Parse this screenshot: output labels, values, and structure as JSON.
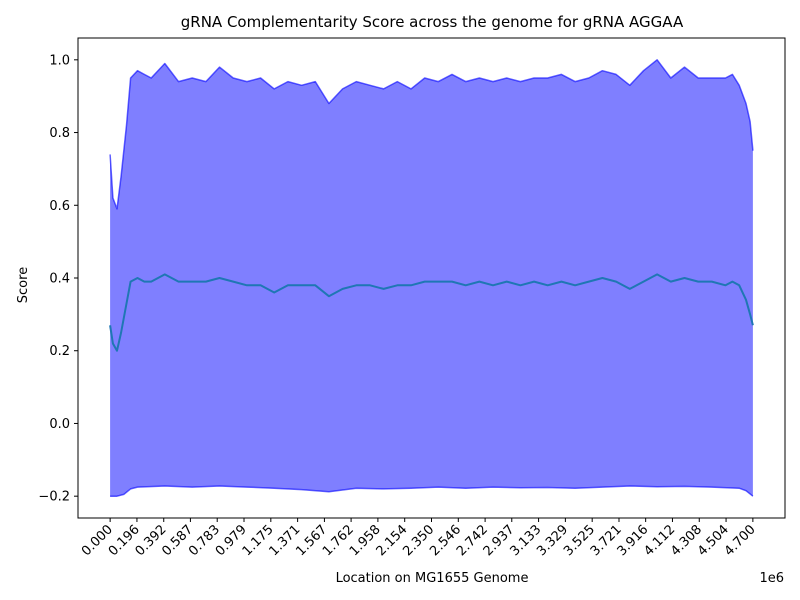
{
  "chart_data": {
    "type": "line",
    "title": "gRNA Complementarity Score across the genome for gRNA AGGAA",
    "xlabel": "Location on MG1655 Genome",
    "ylabel": "Score",
    "x_offset_label": "1e6",
    "xlim": [
      -0.235,
      4.935
    ],
    "ylim": [
      -0.26,
      1.06
    ],
    "x_ticks": [
      "0.000",
      "0.196",
      "0.392",
      "0.587",
      "0.783",
      "0.979",
      "1.175",
      "1.371",
      "1.567",
      "1.762",
      "1.958",
      "2.154",
      "2.350",
      "2.546",
      "2.742",
      "2.937",
      "3.133",
      "3.329",
      "3.525",
      "3.721",
      "3.916",
      "4.112",
      "4.308",
      "4.504",
      "4.700"
    ],
    "y_ticks": [
      "−0.2",
      "0.0",
      "0.2",
      "0.4",
      "0.6",
      "0.8",
      "1.0"
    ],
    "grid": false,
    "series": [
      {
        "role": "upper-bound",
        "color": "#0000ff",
        "x": [
          0.0,
          0.02,
          0.05,
          0.08,
          0.12,
          0.15,
          0.2,
          0.25,
          0.3,
          0.4,
          0.5,
          0.6,
          0.7,
          0.8,
          0.9,
          1.0,
          1.1,
          1.2,
          1.3,
          1.4,
          1.5,
          1.6,
          1.7,
          1.8,
          1.9,
          2.0,
          2.1,
          2.2,
          2.3,
          2.4,
          2.5,
          2.6,
          2.7,
          2.8,
          2.9,
          3.0,
          3.1,
          3.2,
          3.3,
          3.4,
          3.5,
          3.6,
          3.7,
          3.8,
          3.9,
          4.0,
          4.1,
          4.2,
          4.3,
          4.4,
          4.5,
          4.55,
          4.6,
          4.65,
          4.68,
          4.7
        ],
        "values": [
          0.74,
          0.62,
          0.59,
          0.68,
          0.82,
          0.95,
          0.97,
          0.96,
          0.95,
          0.99,
          0.94,
          0.95,
          0.94,
          0.98,
          0.95,
          0.94,
          0.95,
          0.92,
          0.94,
          0.93,
          0.94,
          0.88,
          0.92,
          0.94,
          0.93,
          0.92,
          0.94,
          0.92,
          0.95,
          0.94,
          0.96,
          0.94,
          0.95,
          0.94,
          0.95,
          0.94,
          0.95,
          0.95,
          0.96,
          0.94,
          0.95,
          0.97,
          0.96,
          0.93,
          0.97,
          1.0,
          0.95,
          0.98,
          0.95,
          0.95,
          0.95,
          0.96,
          0.93,
          0.88,
          0.83,
          0.75
        ]
      },
      {
        "role": "mean",
        "color": "#1f77b4",
        "x": [
          0.0,
          0.02,
          0.05,
          0.08,
          0.12,
          0.15,
          0.2,
          0.25,
          0.3,
          0.4,
          0.5,
          0.6,
          0.7,
          0.8,
          0.9,
          1.0,
          1.1,
          1.2,
          1.3,
          1.4,
          1.5,
          1.6,
          1.7,
          1.8,
          1.9,
          2.0,
          2.1,
          2.2,
          2.3,
          2.4,
          2.5,
          2.6,
          2.7,
          2.8,
          2.9,
          3.0,
          3.1,
          3.2,
          3.3,
          3.4,
          3.5,
          3.6,
          3.7,
          3.8,
          3.9,
          4.0,
          4.1,
          4.2,
          4.3,
          4.4,
          4.5,
          4.55,
          4.6,
          4.65,
          4.68,
          4.7
        ],
        "values": [
          0.27,
          0.22,
          0.2,
          0.25,
          0.33,
          0.39,
          0.4,
          0.39,
          0.39,
          0.41,
          0.39,
          0.39,
          0.39,
          0.4,
          0.39,
          0.38,
          0.38,
          0.36,
          0.38,
          0.38,
          0.38,
          0.35,
          0.37,
          0.38,
          0.38,
          0.37,
          0.38,
          0.38,
          0.39,
          0.39,
          0.39,
          0.38,
          0.39,
          0.38,
          0.39,
          0.38,
          0.39,
          0.38,
          0.39,
          0.38,
          0.39,
          0.4,
          0.39,
          0.37,
          0.39,
          0.41,
          0.39,
          0.4,
          0.39,
          0.39,
          0.38,
          0.39,
          0.38,
          0.34,
          0.3,
          0.27
        ]
      },
      {
        "role": "lower-bound",
        "color": "#0000ff",
        "x": [
          0.0,
          0.05,
          0.1,
          0.15,
          0.2,
          0.4,
          0.6,
          0.8,
          1.0,
          1.2,
          1.4,
          1.6,
          1.8,
          2.0,
          2.2,
          2.4,
          2.6,
          2.8,
          3.0,
          3.2,
          3.4,
          3.6,
          3.8,
          4.0,
          4.2,
          4.4,
          4.6,
          4.65,
          4.7
        ],
        "values": [
          -0.2,
          -0.2,
          -0.195,
          -0.18,
          -0.175,
          -0.172,
          -0.175,
          -0.172,
          -0.175,
          -0.178,
          -0.182,
          -0.188,
          -0.178,
          -0.18,
          -0.178,
          -0.175,
          -0.178,
          -0.175,
          -0.177,
          -0.176,
          -0.178,
          -0.175,
          -0.172,
          -0.174,
          -0.173,
          -0.175,
          -0.178,
          -0.185,
          -0.2
        ]
      }
    ],
    "fill": {
      "between": [
        "upper-bound",
        "lower-bound"
      ],
      "color": "#0000ff",
      "opacity": 0.5
    }
  }
}
